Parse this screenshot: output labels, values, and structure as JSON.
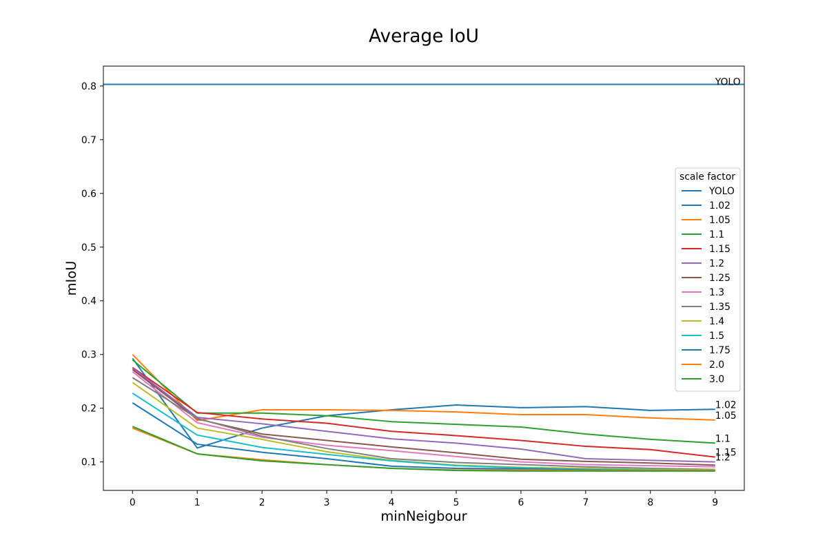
{
  "chart_data": {
    "type": "line",
    "title": "Average IoU",
    "xlabel": "minNeigbour",
    "ylabel": "mIoU",
    "xlim": [
      -0.45,
      9.45
    ],
    "ylim": [
      0.047,
      0.837
    ],
    "x_ticks": [
      "0",
      "1",
      "2",
      "3",
      "4",
      "5",
      "6",
      "7",
      "8",
      "9"
    ],
    "y_ticks": [
      "0.1",
      "0.2",
      "0.3",
      "0.4",
      "0.5",
      "0.6",
      "0.7",
      "0.8"
    ],
    "grid": false,
    "legend": {
      "title": "scale factor",
      "placement": "center-right"
    },
    "x": [
      0,
      1,
      2,
      3,
      4,
      5,
      6,
      7,
      8,
      9
    ],
    "hline": {
      "name": "YOLO",
      "value": 0.803,
      "color": "#1f77b4",
      "label": "YOLO"
    },
    "series": [
      {
        "name": "1.02",
        "color": "#1f77b4",
        "end_label": "1.02",
        "values": [
          0.293,
          0.126,
          0.163,
          0.186,
          0.197,
          0.206,
          0.201,
          0.203,
          0.196,
          0.198
        ]
      },
      {
        "name": "1.05",
        "color": "#ff7f0e",
        "end_label": "1.05",
        "values": [
          0.3,
          0.177,
          0.197,
          0.197,
          0.196,
          0.193,
          0.188,
          0.188,
          0.182,
          0.178
        ]
      },
      {
        "name": "1.1",
        "color": "#2ca02c",
        "end_label": "1.1",
        "values": [
          0.29,
          0.191,
          0.191,
          0.186,
          0.175,
          0.17,
          0.165,
          0.152,
          0.142,
          0.135
        ]
      },
      {
        "name": "1.15",
        "color": "#d62728",
        "end_label": "1.15",
        "values": [
          0.276,
          0.192,
          0.18,
          0.172,
          0.157,
          0.149,
          0.14,
          0.129,
          0.123,
          0.109
        ]
      },
      {
        "name": "1.2",
        "color": "#9467bd",
        "end_label": "1.2",
        "values": [
          0.275,
          0.183,
          0.171,
          0.157,
          0.143,
          0.135,
          0.124,
          0.106,
          0.103,
          0.1
        ]
      },
      {
        "name": "1.25",
        "color": "#8c564b",
        "values": [
          0.272,
          0.18,
          0.152,
          0.14,
          0.128,
          0.117,
          0.105,
          0.101,
          0.098,
          0.094
        ]
      },
      {
        "name": "1.3",
        "color": "#e377c2",
        "values": [
          0.268,
          0.173,
          0.146,
          0.131,
          0.121,
          0.11,
          0.1,
          0.095,
          0.093,
          0.091
        ]
      },
      {
        "name": "1.35",
        "color": "#7f7f7f",
        "values": [
          0.257,
          0.181,
          0.148,
          0.125,
          0.106,
          0.099,
          0.095,
          0.091,
          0.088,
          0.086
        ]
      },
      {
        "name": "1.4",
        "color": "#bcbd22",
        "values": [
          0.248,
          0.163,
          0.142,
          0.119,
          0.103,
          0.094,
          0.09,
          0.088,
          0.086,
          0.085
        ]
      },
      {
        "name": "1.5",
        "color": "#17becf",
        "values": [
          0.228,
          0.15,
          0.127,
          0.114,
          0.102,
          0.093,
          0.089,
          0.086,
          0.085,
          0.084
        ]
      },
      {
        "name": "1.75",
        "color": "#1f77b4",
        "values": [
          0.21,
          0.133,
          0.118,
          0.106,
          0.092,
          0.088,
          0.087,
          0.085,
          0.084,
          0.084
        ]
      },
      {
        "name": "2.0",
        "color": "#ff7f0e",
        "values": [
          0.163,
          0.115,
          0.104,
          0.095,
          0.088,
          0.085,
          0.085,
          0.084,
          0.084,
          0.084
        ]
      },
      {
        "name": "3.0",
        "color": "#2ca02c",
        "values": [
          0.166,
          0.115,
          0.102,
          0.095,
          0.088,
          0.084,
          0.083,
          0.083,
          0.083,
          0.083
        ]
      }
    ]
  }
}
